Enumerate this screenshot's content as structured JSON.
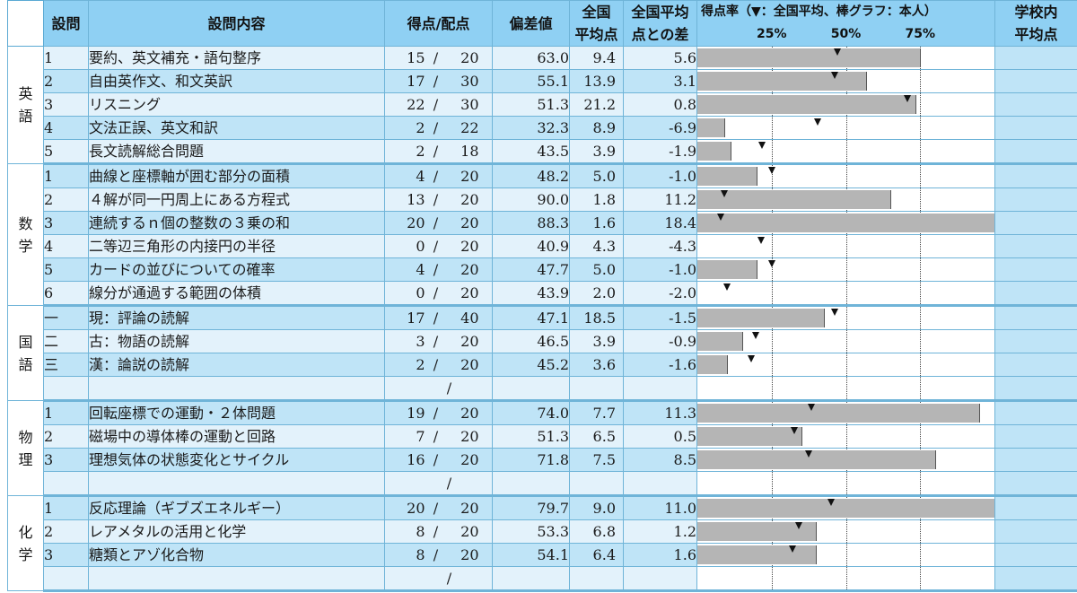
{
  "header": {
    "question": "設問",
    "content": "設問内容",
    "score": "得点/配点",
    "deviation": "偏差値",
    "national_avg": "全国\n平均点",
    "diff": "全国平均\n点との差",
    "rate_title": "得点率（▼：全国平均、棒グラフ：本人）",
    "ticks": [
      "25%",
      "50%",
      "75%"
    ],
    "school_avg": "学校内\n平均点"
  },
  "subjects": [
    {
      "name": "英語",
      "rows": [
        {
          "no": "1",
          "desc": "要約、英文補充・語句整序",
          "got": "15",
          "max": "20",
          "dev": "63.0",
          "avg": "9.4",
          "diff": "5.6"
        },
        {
          "no": "2",
          "desc": "自由英作文、和文英訳",
          "got": "17",
          "max": "30",
          "dev": "55.1",
          "avg": "13.9",
          "diff": "3.1"
        },
        {
          "no": "3",
          "desc": "リスニング",
          "got": "22",
          "max": "30",
          "dev": "51.3",
          "avg": "21.2",
          "diff": "0.8"
        },
        {
          "no": "4",
          "desc": "文法正誤、英文和訳",
          "got": "2",
          "max": "22",
          "dev": "32.3",
          "avg": "8.9",
          "diff": "-6.9"
        },
        {
          "no": "5",
          "desc": "長文読解総合問題",
          "got": "2",
          "max": "18",
          "dev": "43.5",
          "avg": "3.9",
          "diff": "-1.9"
        }
      ]
    },
    {
      "name": "数学",
      "rows": [
        {
          "no": "1",
          "desc": "曲線と座標軸が囲む部分の面積",
          "got": "4",
          "max": "20",
          "dev": "48.2",
          "avg": "5.0",
          "diff": "-1.0"
        },
        {
          "no": "2",
          "desc": "４解が同一円周上にある方程式",
          "got": "13",
          "max": "20",
          "dev": "90.0",
          "avg": "1.8",
          "diff": "11.2"
        },
        {
          "no": "3",
          "desc": "連続するｎ個の整数の３乗の和",
          "got": "20",
          "max": "20",
          "dev": "88.3",
          "avg": "1.6",
          "diff": "18.4"
        },
        {
          "no": "4",
          "desc": "二等辺三角形の内接円の半径",
          "got": "0",
          "max": "20",
          "dev": "40.9",
          "avg": "4.3",
          "diff": "-4.3"
        },
        {
          "no": "5",
          "desc": "カードの並びについての確率",
          "got": "4",
          "max": "20",
          "dev": "47.7",
          "avg": "5.0",
          "diff": "-1.0"
        },
        {
          "no": "6",
          "desc": "線分が通過する範囲の体積",
          "got": "0",
          "max": "20",
          "dev": "43.9",
          "avg": "2.0",
          "diff": "-2.0"
        }
      ]
    },
    {
      "name": "国語",
      "rows": [
        {
          "no": "一",
          "desc": "現：評論の読解",
          "got": "17",
          "max": "40",
          "dev": "47.1",
          "avg": "18.5",
          "diff": "-1.5"
        },
        {
          "no": "二",
          "desc": "古：物語の読解",
          "got": "3",
          "max": "20",
          "dev": "46.5",
          "avg": "3.9",
          "diff": "-0.9"
        },
        {
          "no": "三",
          "desc": "漢：論説の読解",
          "got": "2",
          "max": "20",
          "dev": "45.2",
          "avg": "3.6",
          "diff": "-1.6"
        }
      ],
      "blank": true
    },
    {
      "name": "物理",
      "rows": [
        {
          "no": "1",
          "desc": "回転座標での運動・２体問題",
          "got": "19",
          "max": "20",
          "dev": "74.0",
          "avg": "7.7",
          "diff": "11.3"
        },
        {
          "no": "2",
          "desc": "磁場中の導体棒の運動と回路",
          "got": "7",
          "max": "20",
          "dev": "51.3",
          "avg": "6.5",
          "diff": "0.5"
        },
        {
          "no": "3",
          "desc": "理想気体の状態変化とサイクル",
          "got": "16",
          "max": "20",
          "dev": "71.8",
          "avg": "7.5",
          "diff": "8.5"
        }
      ],
      "blank": true
    },
    {
      "name": "化学",
      "rows": [
        {
          "no": "1",
          "desc": "反応理論（ギブズエネルギー）",
          "got": "20",
          "max": "20",
          "dev": "79.7",
          "avg": "9.0",
          "diff": "11.0"
        },
        {
          "no": "2",
          "desc": "レアメタルの活用と化学",
          "got": "8",
          "max": "20",
          "dev": "53.3",
          "avg": "6.8",
          "diff": "1.2"
        },
        {
          "no": "3",
          "desc": "糖類とアゾ化合物",
          "got": "8",
          "max": "20",
          "dev": "54.1",
          "avg": "6.4",
          "diff": "1.6"
        }
      ],
      "blank": true
    }
  ],
  "slash": "/",
  "colors": {
    "header_bg": "#8fd0f3",
    "row_light": "#e3f2fb",
    "row_dark": "#bfe4f7",
    "bar": "#b5b5b5",
    "grid": "#6fb4d8"
  }
}
